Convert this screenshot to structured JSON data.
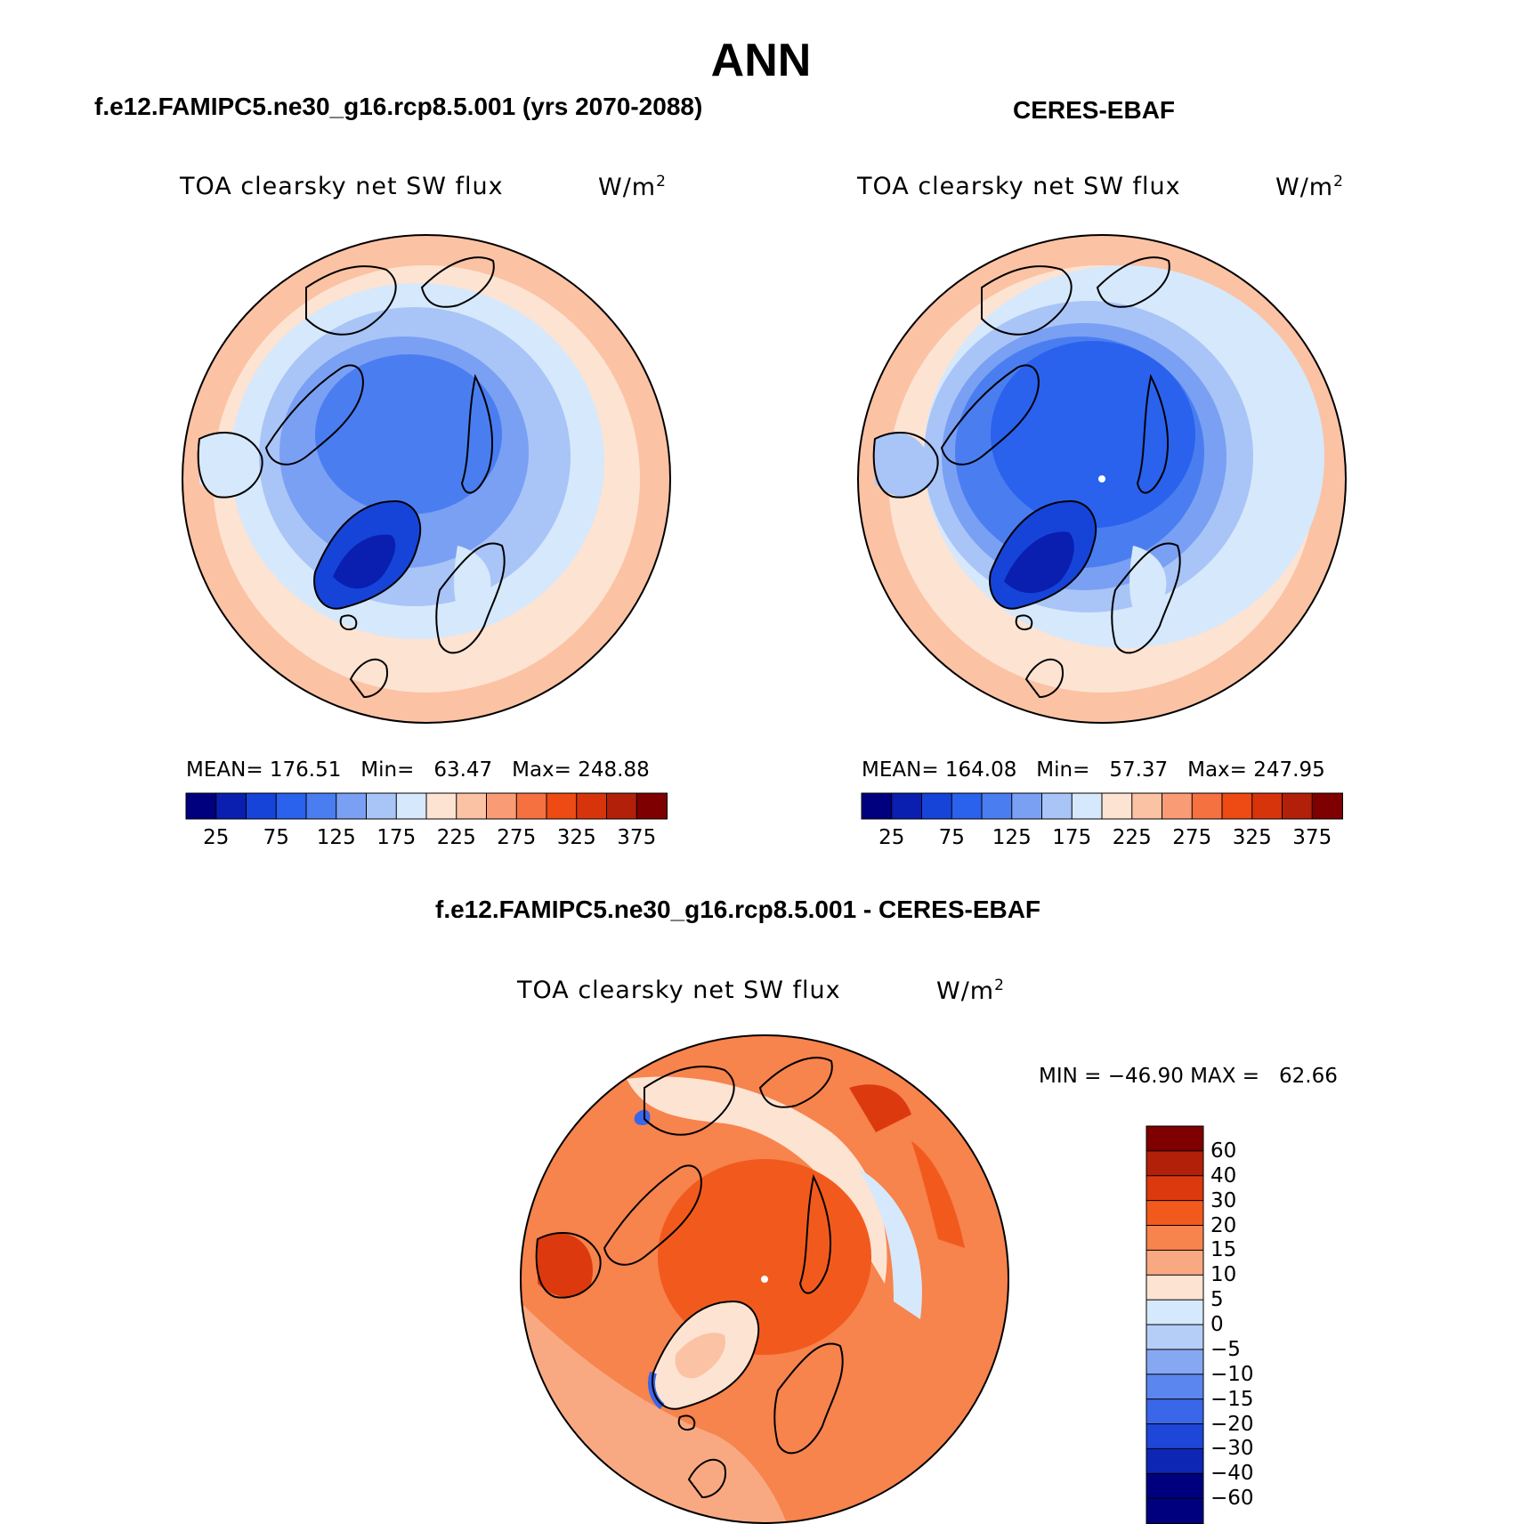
{
  "figure": {
    "season": "ANN"
  },
  "panels": [
    {
      "title": "f.e12.FAMIPC5.ne30_g16.rcp8.5.001 (yrs 2070-2088)",
      "variable": "TOA clearsky net SW flux",
      "units": "W/m",
      "units_sup": "2",
      "stats": "MEAN= 176.51   Min=   63.47   Max= 248.88",
      "pole_mean": null
    },
    {
      "title": "CERES-EBAF",
      "variable": "TOA clearsky net SW flux",
      "units": "W/m",
      "units_sup": "2",
      "stats": "MEAN= 164.08   Min=   57.37   Max= 247.95"
    },
    {
      "title": "f.e12.FAMIPC5.ne30_g16.rcp8.5.001 - CERES-EBAF",
      "variable": "TOA clearsky net SW flux",
      "units": "W/m",
      "units_sup": "2",
      "stats": "MIN = −46.90 MAX =   62.66"
    }
  ],
  "colorbars": {
    "abs": {
      "colors": [
        "#00007f",
        "#0a1eb0",
        "#1644d8",
        "#2a62ee",
        "#4a7ef0",
        "#7aa0f4",
        "#a9c4f7",
        "#d6e8fb",
        "#fde3d2",
        "#fbc2a4",
        "#f99c76",
        "#f5713f",
        "#ee4a14",
        "#d8340c",
        "#b2200a",
        "#7e0000"
      ],
      "labels": [
        "25",
        "75",
        "125",
        "175",
        "225",
        "275",
        "325",
        "375"
      ]
    },
    "diff": {
      "colors": [
        "#7e0000",
        "#b2200a",
        "#dc3a0e",
        "#f25a1d",
        "#f7834d",
        "#f9a982",
        "#fde3d2",
        "#d6e8fb",
        "#b5cef8",
        "#86a8f3",
        "#5a86ee",
        "#3a66ea",
        "#1e46d8",
        "#0e26b4",
        "#00007f"
      ],
      "labels": [
        "60",
        "40",
        "30",
        "20",
        "15",
        "10",
        "5",
        "0",
        "−5",
        "−10",
        "−15",
        "−20",
        "−30",
        "−40",
        "−60"
      ]
    }
  },
  "chart_data": {
    "type": "heatmap",
    "projection": "north polar stereographic",
    "fields": [
      {
        "name": "f.e12.FAMIPC5.ne30_g16.rcp8.5.001 (yrs 2070-2088)",
        "mean": 176.51,
        "min": 63.47,
        "max": 248.88,
        "levels": [
          25,
          50,
          75,
          100,
          125,
          150,
          175,
          200,
          225,
          250,
          275,
          300,
          325,
          350,
          375
        ]
      },
      {
        "name": "CERES-EBAF",
        "mean": 164.08,
        "min": 57.37,
        "max": 247.95,
        "levels": [
          25,
          50,
          75,
          100,
          125,
          150,
          175,
          200,
          225,
          250,
          275,
          300,
          325,
          350,
          375
        ]
      },
      {
        "name": "f.e12.FAMIPC5.ne30_g16.rcp8.5.001 - CERES-EBAF",
        "min": -46.9,
        "max": 62.66,
        "levels": [
          -60,
          -40,
          -30,
          -20,
          -15,
          -10,
          -5,
          0,
          5,
          10,
          15,
          20,
          30,
          40,
          60
        ]
      }
    ]
  }
}
